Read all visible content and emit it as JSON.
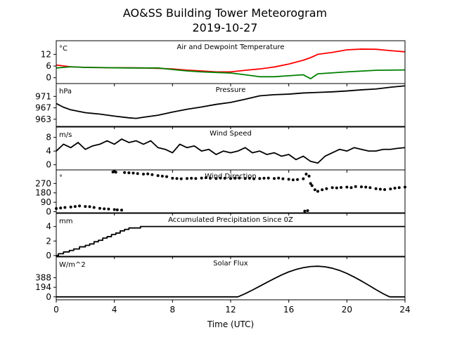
{
  "chart_data": {
    "type": "line",
    "title": "AO&SS Building Tower Meteorogram",
    "subtitle": "2019-10-27",
    "xlabel": "Time (UTC)",
    "xlim": [
      0,
      24
    ],
    "xticks": [
      0,
      4,
      8,
      12,
      16,
      20,
      24
    ],
    "panels": [
      {
        "key": "temp",
        "title": "Air and Dewpoint Temperature",
        "unit": "°C",
        "ylim": [
          -3,
          19
        ],
        "yticks": [
          0,
          6,
          12
        ],
        "series": [
          {
            "color": "#ff0000",
            "x": [
              0,
              1,
              2,
              3,
              4,
              5,
              6,
              7,
              8,
              9,
              10,
              11,
              12,
              13,
              14,
              15,
              16,
              17,
              17.5,
              18,
              19,
              20,
              21,
              22,
              23,
              24
            ],
            "y": [
              6.5,
              5.6,
              5.3,
              5.2,
              5.1,
              5.1,
              5.0,
              4.8,
              4.5,
              3.9,
              3.5,
              3.0,
              3.0,
              3.8,
              4.5,
              5.5,
              7.0,
              9.0,
              10.3,
              12.0,
              13.0,
              14.3,
              14.7,
              14.6,
              13.9,
              13.3
            ]
          },
          {
            "color": "#008000",
            "x": [
              0,
              1,
              2,
              3,
              4,
              5,
              6,
              7,
              8,
              9,
              10,
              11,
              12,
              13,
              14,
              15,
              16,
              17,
              17.5,
              18,
              19,
              20,
              21,
              22,
              23,
              24
            ],
            "y": [
              5.0,
              5.6,
              5.3,
              5.2,
              5.1,
              5.0,
              5.0,
              5.0,
              4.2,
              3.5,
              3.0,
              2.7,
              2.4,
              1.5,
              0.5,
              0.5,
              1.0,
              1.5,
              -0.5,
              2.0,
              2.5,
              3.0,
              3.4,
              3.8,
              3.9,
              4.0
            ]
          }
        ]
      },
      {
        "key": "pressure",
        "title": "Pressure",
        "unit": "hPa",
        "ylim": [
          960.5,
          975.5
        ],
        "yticks": [
          963,
          967,
          971
        ],
        "series": [
          {
            "color": "#000000",
            "x": [
              0,
              0.5,
              1,
              2,
              3,
              4,
              5,
              5.5,
              6,
              7,
              8,
              9,
              10,
              11,
              12,
              13,
              14,
              15,
              16,
              17,
              18,
              19,
              20,
              21,
              22,
              23,
              24
            ],
            "y": [
              968.5,
              967.2,
              966.3,
              965.3,
              964.8,
              964.1,
              963.5,
              963.3,
              963.7,
              964.4,
              965.5,
              966.5,
              967.3,
              968.2,
              968.9,
              970.0,
              971.2,
              971.6,
              971.8,
              972.2,
              972.4,
              972.6,
              972.9,
              973.3,
              973.6,
              974.2,
              974.7
            ]
          }
        ]
      },
      {
        "key": "wind_speed",
        "title": "Wind Speed",
        "unit": "m/s",
        "ylim": [
          -1.5,
          11
        ],
        "yticks": [
          0,
          4,
          8
        ],
        "series": [
          {
            "color": "#000000",
            "x": [
              0,
              0.5,
              1,
              1.5,
              2,
              2.5,
              3,
              3.5,
              4,
              4.5,
              5,
              5.5,
              6,
              6.5,
              7,
              7.5,
              8,
              8.5,
              9,
              9.5,
              10,
              10.5,
              11,
              11.5,
              12,
              12.5,
              13,
              13.5,
              14,
              14.5,
              15,
              15.5,
              16,
              16.5,
              17,
              17.5,
              18,
              18.5,
              19,
              19.5,
              20,
              20.5,
              21,
              21.5,
              22,
              22.5,
              23,
              23.5,
              24
            ],
            "y": [
              4.0,
              6.0,
              5.0,
              6.5,
              4.5,
              5.5,
              6.0,
              7.0,
              6.0,
              7.5,
              6.5,
              7.0,
              6.0,
              7.0,
              5.0,
              4.5,
              3.5,
              6.0,
              5.0,
              5.5,
              4.0,
              4.5,
              3.0,
              4.0,
              3.5,
              4.0,
              5.0,
              3.5,
              4.0,
              3.0,
              3.5,
              2.5,
              3.0,
              1.5,
              2.5,
              1.0,
              0.5,
              2.5,
              3.5,
              4.5,
              4.0,
              5.0,
              4.5,
              4.0,
              4.0,
              4.5,
              4.5,
              4.8,
              5.0
            ]
          }
        ]
      },
      {
        "key": "wind_direction",
        "title": "Wind Direction",
        "unit": "°",
        "ylim": [
          -10,
          400
        ],
        "yticks": [
          0,
          90,
          180,
          270
        ],
        "series": [
          {
            "color": "#000000",
            "markers": true,
            "x": [
              0,
              0.3,
              0.6,
              1,
              1.3,
              1.6,
              2,
              2.3,
              2.6,
              3,
              3.3,
              3.6,
              4,
              4.2,
              4.5,
              3.9,
              4.0,
              4.1,
              4.7,
              5,
              5.3,
              5.6,
              6,
              6.3,
              6.6,
              7,
              7.3,
              7.6,
              8,
              8.3,
              8.6,
              9,
              9.3,
              9.6,
              10,
              10.3,
              10.6,
              11,
              11.3,
              11.6,
              12,
              12.3,
              12.6,
              13,
              13.3,
              13.6,
              14,
              14.3,
              14.6,
              15,
              15.3,
              15.6,
              16,
              16.3,
              16.6,
              17,
              17.2,
              17.4,
              17.5,
              17.6,
              17.8,
              18,
              18.3,
              18.6,
              19,
              19.3,
              19.6,
              20,
              20.3,
              20.6,
              21,
              21.3,
              21.6,
              22,
              22.3,
              22.6,
              23,
              23.3,
              23.6,
              24,
              17.3,
              17.1
            ],
            "y": [
              30,
              35,
              40,
              45,
              50,
              55,
              50,
              48,
              40,
              32,
              28,
              25,
              20,
              18,
              15,
              380,
              385,
              378,
              375,
              372,
              370,
              365,
              360,
              362,
              355,
              345,
              340,
              335,
              320,
              318,
              315,
              318,
              320,
              318,
              322,
              325,
              320,
              318,
              322,
              320,
              318,
              320,
              322,
              318,
              320,
              315,
              318,
              320,
              322,
              318,
              322,
              315,
              310,
              305,
              308,
              315,
              360,
              340,
              270,
              250,
              210,
              195,
              210,
              220,
              230,
              228,
              232,
              235,
              230,
              240,
              238,
              235,
              230,
              220,
              215,
              212,
              218,
              225,
              230,
              235,
              10,
              5
            ]
          }
        ]
      },
      {
        "key": "precip",
        "title": "Accumulated Precipitation Since 0Z",
        "unit": "mm",
        "ylim": [
          -0.1,
          5.8
        ],
        "yticks": [
          0,
          2,
          4
        ],
        "series": [
          {
            "color": "#000000",
            "step": true,
            "x": [
              0,
              0.15,
              0.5,
              0.9,
              1.2,
              1.6,
              2.0,
              2.3,
              2.6,
              2.9,
              3.2,
              3.5,
              3.8,
              4.1,
              4.4,
              4.7,
              5.0,
              5.8,
              24
            ],
            "y": [
              0,
              0.25,
              0.5,
              0.7,
              0.9,
              1.2,
              1.4,
              1.6,
              1.9,
              2.1,
              2.4,
              2.6,
              2.9,
              3.1,
              3.4,
              3.6,
              3.8,
              4.0,
              4.0
            ]
          }
        ]
      },
      {
        "key": "solar",
        "title": "Solar Flux",
        "unit": "W/m^2",
        "ylim": [
          -60,
          810
        ],
        "yticks": [
          0,
          194,
          388
        ],
        "series": [
          {
            "color": "#000000",
            "x": [
              0,
              12,
              12.5,
              13,
              13.5,
              14,
              14.5,
              15,
              15.5,
              16,
              16.5,
              17,
              17.5,
              18,
              18.5,
              19,
              19.5,
              20,
              20.5,
              21,
              21.5,
              22,
              22.5,
              22.9,
              23,
              24
            ],
            "y": [
              0,
              0,
              0,
              64,
              138,
              216,
              294,
              370,
              443,
              507,
              556,
              592,
              616,
              622,
              610,
              581,
              536,
              476,
              403,
              322,
              236,
              147,
              63,
              5,
              0,
              0
            ]
          }
        ]
      }
    ]
  }
}
